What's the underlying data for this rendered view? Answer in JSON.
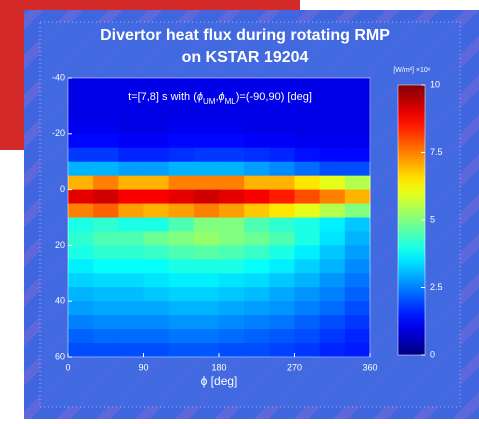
{
  "chart_data": {
    "type": "heatmap",
    "title": [
      "Divertor heat flux during rotating RMP",
      "on KSTAR 19204"
    ],
    "annotation": [
      "t=[7,8] s with (",
      "ϕ",
      "UM",
      ",",
      "ϕ",
      "ML",
      ")=(-90,90) [deg]"
    ],
    "xlabel": "ϕ [deg]",
    "colorbar_label": "[W/m²] ×10⁶",
    "colormap": "jet",
    "x": [
      15,
      45,
      75,
      105,
      135,
      165,
      195,
      225,
      255,
      285,
      315,
      345
    ],
    "y": [
      -37.5,
      -32.5,
      -27.5,
      -22.5,
      -17.5,
      -12.5,
      -7.5,
      -2.5,
      2.5,
      7.5,
      12.5,
      17.5,
      22.5,
      27.5,
      32.5,
      37.5,
      42.5,
      47.5,
      52.5,
      57.5
    ],
    "values": [
      [
        1,
        1,
        1,
        1,
        1,
        1,
        1,
        1,
        1,
        1,
        1,
        1
      ],
      [
        1,
        1,
        1,
        1,
        1,
        1,
        1,
        1,
        1,
        1,
        1,
        1
      ],
      [
        1,
        1,
        1,
        1,
        1,
        1,
        1,
        1,
        1,
        1,
        1,
        1
      ],
      [
        1.1,
        1.1,
        1,
        1,
        1.1,
        1.1,
        1.1,
        1,
        1,
        1,
        1,
        1
      ],
      [
        1.3,
        1.3,
        1.2,
        1.2,
        1.3,
        1.3,
        1.3,
        1.2,
        1.2,
        1.1,
        1.1,
        1.1
      ],
      [
        1.8,
        1.8,
        1.6,
        1.6,
        1.7,
        1.8,
        1.8,
        1.7,
        1.6,
        1.4,
        1.3,
        1.3
      ],
      [
        3,
        3,
        2.8,
        2.8,
        3,
        3,
        3,
        2.8,
        2.6,
        2.3,
        2,
        2
      ],
      [
        7,
        7.5,
        7,
        7,
        7.5,
        7.5,
        7.5,
        7,
        7,
        6.5,
        6,
        5.5
      ],
      [
        9,
        9.2,
        8.8,
        8.8,
        9,
        9.2,
        9,
        8.8,
        8.5,
        8,
        7.5,
        7
      ],
      [
        7.5,
        7.8,
        7.2,
        7,
        7.2,
        7.5,
        7.2,
        6.8,
        6.5,
        6,
        5.5,
        5
      ],
      [
        4,
        4.2,
        4,
        4,
        4.5,
        5,
        5,
        4.5,
        4.2,
        4,
        3.6,
        3.2
      ],
      [
        4.2,
        4.5,
        4.5,
        4.8,
        5,
        5.2,
        5,
        4.8,
        4.5,
        4,
        3.5,
        3
      ],
      [
        4,
        4.2,
        4.2,
        4.3,
        4.5,
        4.6,
        4.5,
        4.3,
        4,
        3.6,
        3.2,
        2.8
      ],
      [
        3.6,
        3.8,
        3.8,
        3.8,
        4,
        4,
        4,
        3.8,
        3.6,
        3.3,
        3,
        2.6
      ],
      [
        3.3,
        3.4,
        3.4,
        3.5,
        3.6,
        3.6,
        3.5,
        3.4,
        3.2,
        3,
        2.7,
        2.4
      ],
      [
        3,
        3.1,
        3.1,
        3.2,
        3.3,
        3.3,
        3.2,
        3.1,
        2.9,
        2.7,
        2.5,
        2.2
      ],
      [
        2.8,
        2.9,
        2.9,
        2.9,
        3,
        3,
        2.9,
        2.8,
        2.7,
        2.5,
        2.3,
        2
      ],
      [
        2.5,
        2.6,
        2.6,
        2.6,
        2.7,
        2.7,
        2.6,
        2.5,
        2.4,
        2.2,
        2,
        1.8
      ],
      [
        2.2,
        2.3,
        2.3,
        2.3,
        2.4,
        2.4,
        2.3,
        2.2,
        2.1,
        2,
        1.8,
        1.6
      ],
      [
        2,
        2,
        2,
        2,
        2.1,
        2.1,
        2,
        2,
        1.9,
        1.8,
        1.6,
        1.5
      ]
    ],
    "xlim": [
      0,
      360
    ],
    "xticks": [
      0,
      90,
      180,
      270,
      360
    ],
    "ylim": [
      -40,
      60
    ],
    "yticks": [
      -40,
      -20,
      0,
      20,
      40,
      60
    ],
    "y_inverted": true,
    "clim": [
      0,
      10
    ],
    "cticks": [
      0,
      2.5,
      5,
      7.5,
      10
    ]
  }
}
